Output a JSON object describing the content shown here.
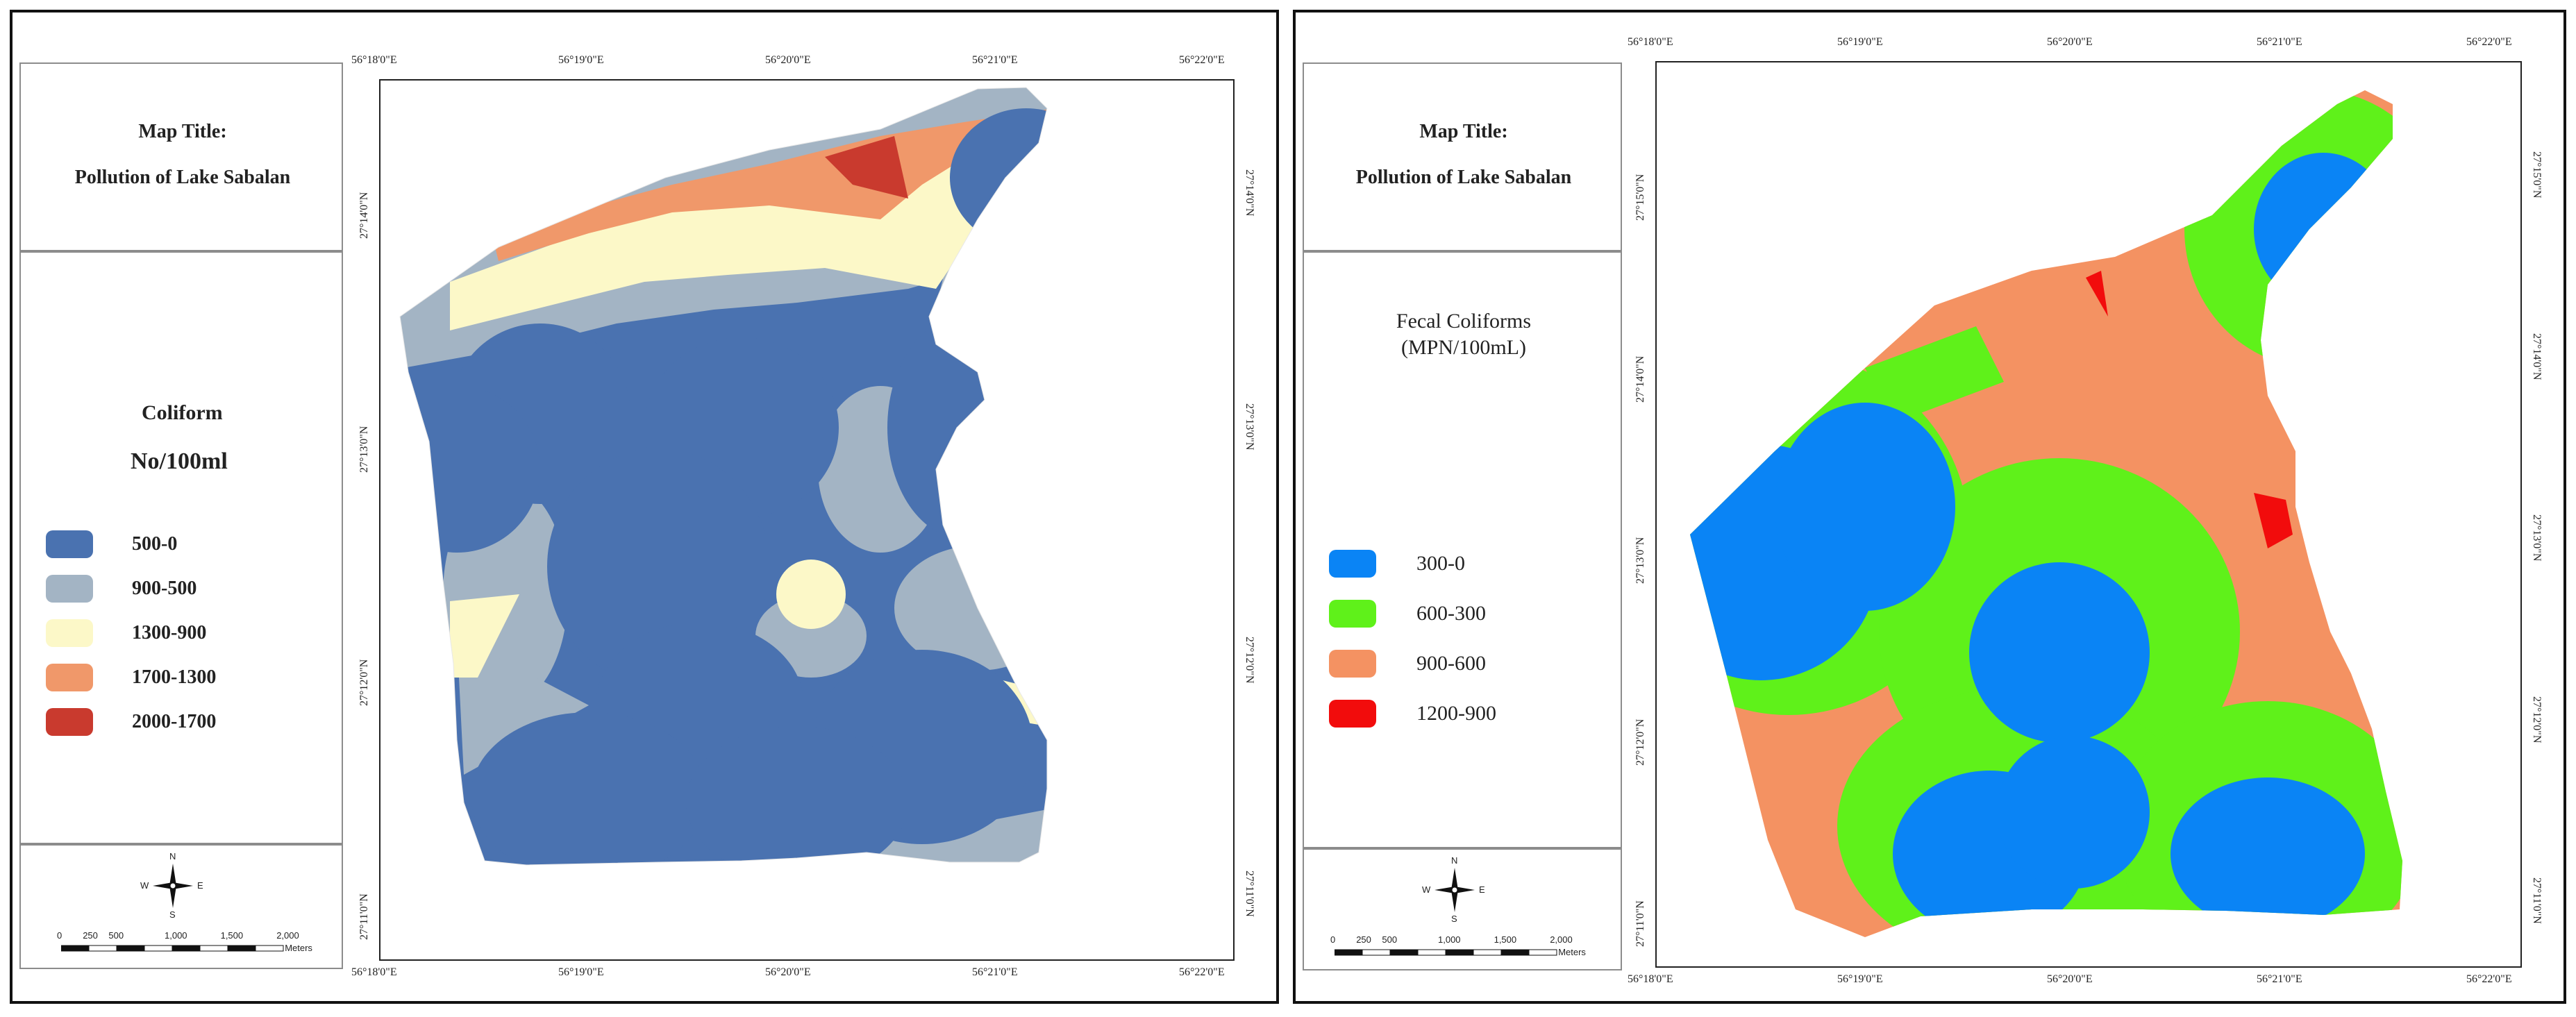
{
  "left": {
    "title_label": "Map Title:",
    "title": "Pollution of Lake Sabalan",
    "legend_title": "Coliform",
    "legend_unit": "No/100ml",
    "legend": [
      {
        "label": "500-0",
        "color": "#4a72b0"
      },
      {
        "label": "900-500",
        "color": "#a3b4c4"
      },
      {
        "label": "1300-900",
        "color": "#fcf8c8"
      },
      {
        "label": "1700-1300",
        "color": "#f0986a"
      },
      {
        "label": "2000-1700",
        "color": "#c93a2e"
      }
    ],
    "top_ticks": [
      "56°18'0\"E",
      "56°19'0\"E",
      "56°20'0\"E",
      "56°21'0\"E",
      "56°22'0\"E"
    ],
    "bottom_ticks": [
      "56°18'0\"E",
      "56°19'0\"E",
      "56°20'0\"E",
      "56°21'0\"E",
      "56°22'0\"E"
    ],
    "side_ticks": [
      "27°14'0\"N",
      "27°13'0\"N",
      "27°12'0\"N",
      "27°11'0\"N"
    ],
    "scale_labels": [
      "0",
      "250",
      "500",
      "1,000",
      "1,500",
      "2,000"
    ],
    "scale_unit": "Meters"
  },
  "right": {
    "title_label": "Map Title:",
    "title": "Pollution of Lake Sabalan",
    "legend_title_line1": "Fecal Coliforms",
    "legend_title_line2": "(MPN/100mL)",
    "legend": [
      {
        "label": "300-0",
        "color": "#0a84f5"
      },
      {
        "label": "600-300",
        "color": "#5ff11a"
      },
      {
        "label": "900-600",
        "color": "#f49262"
      },
      {
        "label": "1200-900",
        "color": "#f20c0c"
      }
    ],
    "top_ticks": [
      "56°18'0\"E",
      "56°19'0\"E",
      "56°20'0\"E",
      "56°21'0\"E",
      "56°22'0\"E"
    ],
    "bottom_ticks": [
      "56°18'0\"E",
      "56°19'0\"E",
      "56°20'0\"E",
      "56°21'0\"E",
      "56°22'0\"E"
    ],
    "side_ticks": [
      "27°15'0\"N",
      "27°14'0\"N",
      "27°13'0\"N",
      "27°12'0\"N",
      "27°11'0\"N"
    ],
    "scale_labels": [
      "0",
      "250",
      "500",
      "1,000",
      "1,500",
      "2,000"
    ],
    "scale_unit": "Meters"
  },
  "north_arrow": {
    "n": "N",
    "s": "S",
    "e": "E",
    "w": "W"
  },
  "icons": [
    "north-arrow-icon",
    "scale-bar-icon"
  ]
}
